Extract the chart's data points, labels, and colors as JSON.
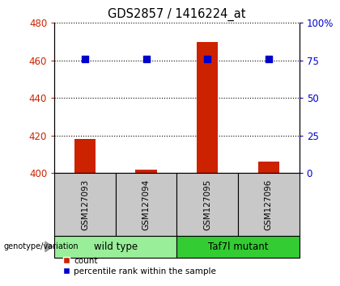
{
  "title": "GDS2857 / 1416224_at",
  "samples": [
    "GSM127093",
    "GSM127094",
    "GSM127095",
    "GSM127096"
  ],
  "counts": [
    418,
    402,
    470,
    406
  ],
  "percentiles": [
    76,
    76,
    76,
    76
  ],
  "ylim_left": [
    400,
    480
  ],
  "ylim_right": [
    0,
    100
  ],
  "yticks_left": [
    400,
    420,
    440,
    460,
    480
  ],
  "yticks_right": [
    0,
    25,
    50,
    75,
    100
  ],
  "ytick_labels_right": [
    "0",
    "25",
    "50",
    "75",
    "100%"
  ],
  "bar_color": "#cc2200",
  "square_color": "#0000cc",
  "groups": [
    {
      "label": "wild type",
      "samples": [
        0,
        1
      ],
      "color": "#99ee99"
    },
    {
      "label": "Taf7l mutant",
      "samples": [
        2,
        3
      ],
      "color": "#33cc33"
    }
  ],
  "genotype_label": "genotype/variation",
  "legend_count_label": "count",
  "legend_percentile_label": "percentile rank within the sample",
  "title_color": "#000000",
  "left_axis_color": "#cc2200",
  "right_axis_color": "#0000cc",
  "grid_color": "#000000",
  "sample_box_color": "#c8c8c8",
  "bar_width": 0.35,
  "square_size": 28
}
